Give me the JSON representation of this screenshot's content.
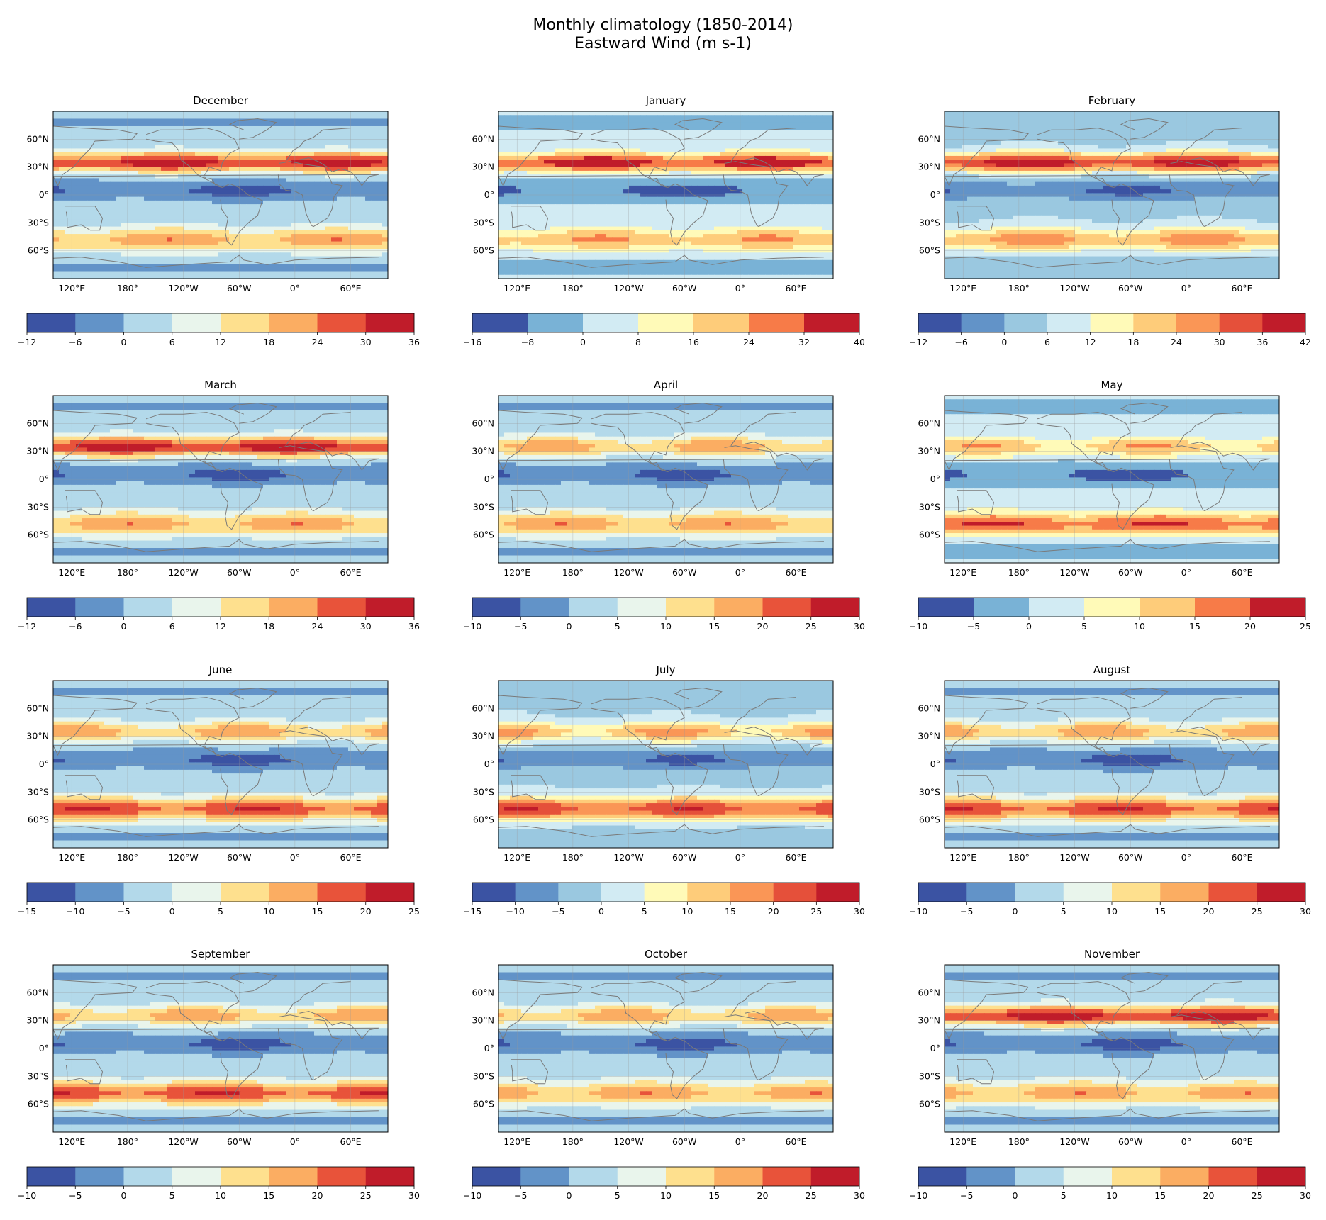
{
  "title": {
    "line1": "Monthly climatology (1850-2014)",
    "line2": "Eastward Wind (m s-1)"
  },
  "chart_data": {
    "type": "heatmap",
    "map_lat_labels": [
      "60°N",
      "30°N",
      "0°",
      "30°S",
      "60°S"
    ],
    "map_lat_values": [
      60,
      30,
      0,
      -30,
      -60
    ],
    "map_lon_labels": [
      "120°E",
      "180°",
      "120°W",
      "60°W",
      "0°",
      "60°E"
    ],
    "panels": [
      {
        "month": "December",
        "levels": [
          -12,
          -6,
          0,
          6,
          12,
          18,
          24,
          30,
          36
        ],
        "colors": [
          "#3b53a3",
          "#6293c8",
          "#b3d9ea",
          "#e9f5ec",
          "#fee08e",
          "#fbad62",
          "#e8533a",
          "#c01c2a"
        ]
      },
      {
        "month": "January",
        "levels": [
          -16,
          -8,
          0,
          8,
          16,
          24,
          32,
          40
        ],
        "colors": [
          "#3b53a3",
          "#79b2d6",
          "#d2ebf3",
          "#fffab8",
          "#fecc7a",
          "#f77b48",
          "#c01c2a"
        ]
      },
      {
        "month": "February",
        "levels": [
          -12,
          -6,
          0,
          6,
          12,
          18,
          24,
          30,
          36,
          42
        ],
        "colors": [
          "#3b53a3",
          "#6293c8",
          "#9ac8e0",
          "#d2ebf3",
          "#fffab8",
          "#fecc7a",
          "#fa9656",
          "#e5503a",
          "#c01c2a"
        ]
      },
      {
        "month": "March",
        "levels": [
          -12,
          -6,
          0,
          6,
          12,
          18,
          24,
          30,
          36
        ],
        "colors": [
          "#3b53a3",
          "#6293c8",
          "#b3d9ea",
          "#e9f5ec",
          "#fee08e",
          "#fbad62",
          "#e8533a",
          "#c01c2a"
        ]
      },
      {
        "month": "April",
        "levels": [
          -10,
          -5,
          0,
          5,
          10,
          15,
          20,
          25,
          30
        ],
        "colors": [
          "#3b53a3",
          "#6293c8",
          "#b3d9ea",
          "#e9f5ec",
          "#fee08e",
          "#fbad62",
          "#e8533a",
          "#c01c2a"
        ]
      },
      {
        "month": "May",
        "levels": [
          -10,
          -5,
          0,
          5,
          10,
          15,
          20,
          25
        ],
        "colors": [
          "#3b53a3",
          "#79b2d6",
          "#d2ebf3",
          "#fffab8",
          "#fecc7a",
          "#f77b48",
          "#c01c2a"
        ]
      },
      {
        "month": "June",
        "levels": [
          -15,
          -10,
          -5,
          0,
          5,
          10,
          15,
          20,
          25
        ],
        "colors": [
          "#3b53a3",
          "#6293c8",
          "#b3d9ea",
          "#e9f5ec",
          "#fee08e",
          "#fbad62",
          "#e8533a",
          "#c01c2a"
        ]
      },
      {
        "month": "July",
        "levels": [
          -15,
          -10,
          -5,
          0,
          5,
          10,
          15,
          20,
          25,
          30
        ],
        "colors": [
          "#3b53a3",
          "#6293c8",
          "#9ac8e0",
          "#d2ebf3",
          "#fffab8",
          "#fecc7a",
          "#fa9656",
          "#e5503a",
          "#c01c2a"
        ]
      },
      {
        "month": "August",
        "levels": [
          -10,
          -5,
          0,
          5,
          10,
          15,
          20,
          25,
          30
        ],
        "colors": [
          "#3b53a3",
          "#6293c8",
          "#b3d9ea",
          "#e9f5ec",
          "#fee08e",
          "#fbad62",
          "#e8533a",
          "#c01c2a"
        ]
      },
      {
        "month": "September",
        "levels": [
          -10,
          -5,
          0,
          5,
          10,
          15,
          20,
          25,
          30
        ],
        "colors": [
          "#3b53a3",
          "#6293c8",
          "#b3d9ea",
          "#e9f5ec",
          "#fee08e",
          "#fbad62",
          "#e8533a",
          "#c01c2a"
        ]
      },
      {
        "month": "October",
        "levels": [
          -10,
          -5,
          0,
          5,
          10,
          15,
          20,
          25,
          30
        ],
        "colors": [
          "#3b53a3",
          "#6293c8",
          "#b3d9ea",
          "#e9f5ec",
          "#fee08e",
          "#fbad62",
          "#e8533a",
          "#c01c2a"
        ]
      },
      {
        "month": "November",
        "levels": [
          -10,
          -5,
          0,
          5,
          10,
          15,
          20,
          25,
          30
        ],
        "colors": [
          "#3b53a3",
          "#6293c8",
          "#b3d9ea",
          "#e9f5ec",
          "#fee08e",
          "#fbad62",
          "#e8533a",
          "#c01c2a"
        ]
      }
    ]
  }
}
